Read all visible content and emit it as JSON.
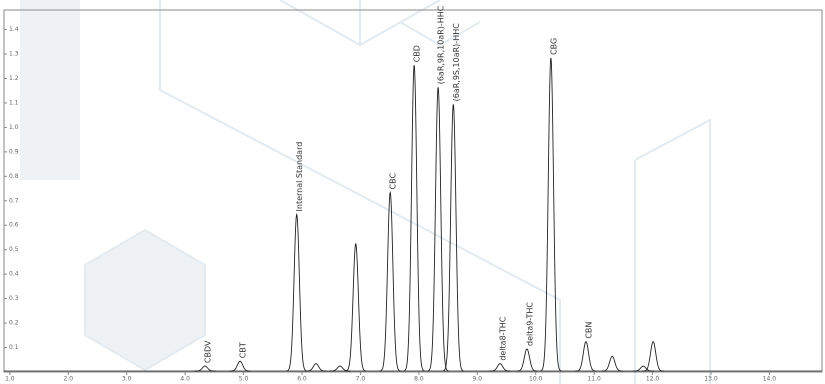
{
  "chart_data": {
    "type": "chromatogram",
    "xlim": [
      0.9,
      14.9
    ],
    "ylim": [
      0,
      1.48
    ],
    "xticks": [
      {
        "value": 1,
        "label": "1.0"
      },
      {
        "value": 2,
        "label": "2.0"
      },
      {
        "value": 3,
        "label": "3.0"
      },
      {
        "value": 4,
        "label": "4.0"
      },
      {
        "value": 5,
        "label": "5.0"
      },
      {
        "value": 6,
        "label": "6.0"
      },
      {
        "value": 7,
        "label": "7.0"
      },
      {
        "value": 8,
        "label": "8.0"
      },
      {
        "value": 9,
        "label": "9.0"
      },
      {
        "value": 10,
        "label": "10.0"
      },
      {
        "value": 11,
        "label": "11.0"
      },
      {
        "value": 12,
        "label": "12.0"
      },
      {
        "value": 13,
        "label": "13.0"
      },
      {
        "value": 14,
        "label": "14.0"
      }
    ],
    "yticks": [
      0.1,
      0.2,
      0.3,
      0.4,
      0.5,
      0.6,
      0.7,
      0.8,
      0.9,
      {
        "value": 1,
        "label": "1.0"
      },
      1.1,
      1.2,
      1.3,
      1.4
    ],
    "color": "#222222",
    "x": [
      4.34,
      4.94,
      5.91,
      6.24,
      6.65,
      6.92,
      7.51,
      7.92,
      8.33,
      8.59,
      9.39,
      9.85,
      10.26,
      10.86,
      11.31,
      11.84,
      12.01
    ],
    "values": [
      0.02,
      0.04,
      0.64,
      0.03,
      0.02,
      0.52,
      0.73,
      1.25,
      1.16,
      1.09,
      0.03,
      0.09,
      1.28,
      0.12,
      0.06,
      0.02,
      0.12
    ],
    "peak_labels": [
      "CBDV",
      "CBT",
      "Internal Standard",
      null,
      null,
      null,
      "CBC",
      "CBD",
      "(6aR,9R,10aR)-HHC",
      "(6aR,9S,10aR)-HHC",
      "delta8-THC",
      "delta9-THC",
      "CBG",
      "CBN",
      null,
      null,
      null
    ]
  }
}
